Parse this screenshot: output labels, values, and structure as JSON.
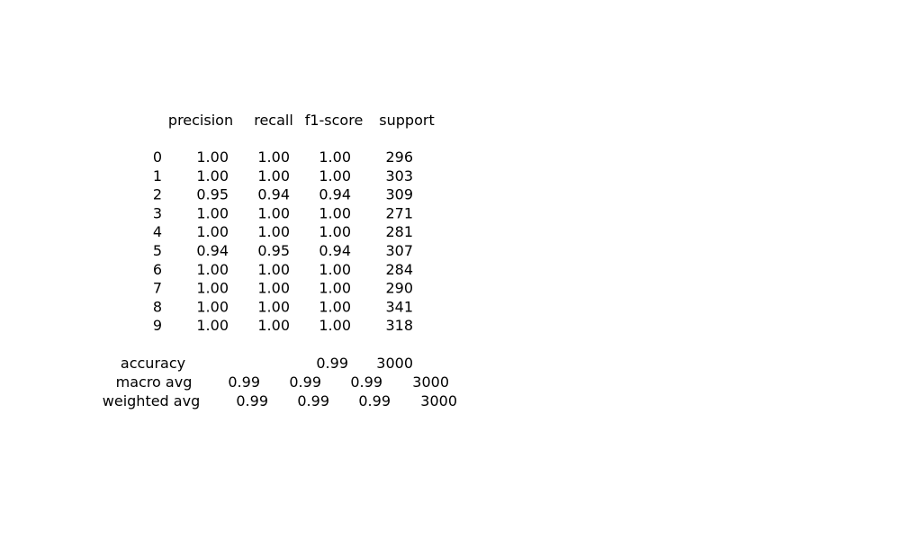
{
  "chart_data": {
    "type": "table",
    "title": "",
    "columns": [
      "precision",
      "recall",
      "f1-score",
      "support"
    ],
    "rows": [
      {
        "label": "0",
        "values": [
          "1.00",
          "1.00",
          "1.00",
          "296"
        ]
      },
      {
        "label": "1",
        "values": [
          "1.00",
          "1.00",
          "1.00",
          "303"
        ]
      },
      {
        "label": "2",
        "values": [
          "0.95",
          "0.94",
          "0.94",
          "309"
        ]
      },
      {
        "label": "3",
        "values": [
          "1.00",
          "1.00",
          "1.00",
          "271"
        ]
      },
      {
        "label": "4",
        "values": [
          "1.00",
          "1.00",
          "1.00",
          "281"
        ]
      },
      {
        "label": "5",
        "values": [
          "0.94",
          "0.95",
          "0.94",
          "307"
        ]
      },
      {
        "label": "6",
        "values": [
          "1.00",
          "1.00",
          "1.00",
          "284"
        ]
      },
      {
        "label": "7",
        "values": [
          "1.00",
          "1.00",
          "1.00",
          "290"
        ]
      },
      {
        "label": "8",
        "values": [
          "1.00",
          "1.00",
          "1.00",
          "341"
        ]
      },
      {
        "label": "9",
        "values": [
          "1.00",
          "1.00",
          "1.00",
          "318"
        ]
      }
    ],
    "summary": [
      {
        "label": "accuracy",
        "values": [
          "",
          "",
          "0.99",
          "3000"
        ]
      },
      {
        "label": "macro avg",
        "values": [
          "0.99",
          "0.99",
          "0.99",
          "3000"
        ]
      },
      {
        "label": "weighted avg",
        "values": [
          "0.99",
          "0.99",
          "0.99",
          "3000"
        ]
      }
    ]
  }
}
